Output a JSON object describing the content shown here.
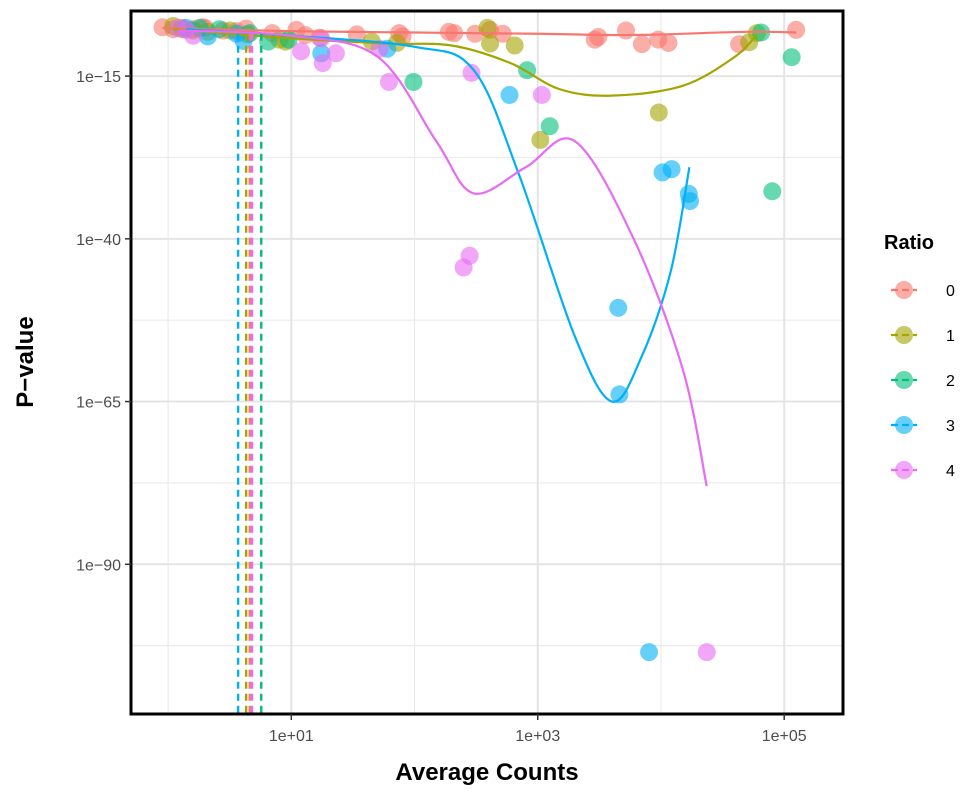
{
  "chart_data": {
    "type": "scatter",
    "xlabel": "Average Counts",
    "ylabel": "P−value",
    "x_scale": "log10",
    "y_scale": "log10",
    "xlim": [
      0.5,
      300000
    ],
    "ylim": [
      1e-113,
      1e-05
    ],
    "x_ticks": [
      {
        "value": 10,
        "label": "1e+01"
      },
      {
        "value": 1000,
        "label": "1e+03"
      },
      {
        "value": 100000,
        "label": "1e+05"
      }
    ],
    "y_ticks": [
      {
        "value": 1e-15,
        "label": "1e−15"
      },
      {
        "value": 1e-40,
        "label": "1e−40"
      },
      {
        "value": 1e-65,
        "label": "1e−65"
      },
      {
        "value": 1e-90,
        "label": "1e−90"
      }
    ],
    "grid": true,
    "legend": {
      "title": "Ratio",
      "position": "right"
    },
    "series": [
      {
        "name": "0",
        "color": "#F8766D",
        "points": [
          [
            0.9,
            -7.5
          ],
          [
            1.1,
            -7.8
          ],
          [
            1.3,
            -7.6
          ],
          [
            1.6,
            -7.8
          ],
          [
            1.9,
            -7.5
          ],
          [
            2.0,
            -7.6
          ],
          [
            2.8,
            -8.0
          ],
          [
            3.6,
            -8.1
          ],
          [
            4.3,
            -7.7
          ],
          [
            7.0,
            -8.4
          ],
          [
            11.0,
            -7.9
          ],
          [
            13.0,
            -8.7
          ],
          [
            17.0,
            -9.1
          ],
          [
            34.0,
            -8.6
          ],
          [
            75.0,
            -8.4
          ],
          [
            80.0,
            -8.9
          ],
          [
            190.0,
            -8.2
          ],
          [
            210.0,
            -8.4
          ],
          [
            310.0,
            -8.5
          ],
          [
            410.0,
            -7.9
          ],
          [
            520.0,
            -8.5
          ],
          [
            2900.0,
            -9.4
          ],
          [
            3100.0,
            -9.0
          ],
          [
            5200.0,
            -8.0
          ],
          [
            7000.0,
            -10.1
          ],
          [
            9500.0,
            -9.4
          ],
          [
            11500.0,
            -9.9
          ],
          [
            43000.0,
            -10.1
          ],
          [
            125000.0,
            -7.9
          ]
        ],
        "smooth": [
          [
            0.9,
            -7.6
          ],
          [
            10.0,
            -8.1
          ],
          [
            100.0,
            -8.3
          ],
          [
            1000.0,
            -8.5
          ],
          [
            4000.0,
            -8.7
          ],
          [
            10000.0,
            -8.6
          ],
          [
            50000.0,
            -8.2
          ],
          [
            125000.0,
            -8.3
          ]
        ],
        "cutoff_x": 4.6
      },
      {
        "name": "1",
        "color": "#A3A500",
        "points": [
          [
            1.1,
            -7.3
          ],
          [
            1.3,
            -7.8
          ],
          [
            1.6,
            -8.0
          ],
          [
            2.1,
            -8.2
          ],
          [
            3.2,
            -8.0
          ],
          [
            4.4,
            -8.6
          ],
          [
            8.0,
            -9.4
          ],
          [
            9.0,
            -9.7
          ],
          [
            45.0,
            -9.7
          ],
          [
            72.0,
            -9.9
          ],
          [
            390.0,
            -7.6
          ],
          [
            410.0,
            -10.0
          ],
          [
            650.0,
            -10.3
          ],
          [
            1050.0,
            -24.8
          ],
          [
            9600.0,
            -20.6
          ],
          [
            52000.0,
            -9.8
          ],
          [
            60000.0,
            -8.4
          ]
        ],
        "smooth": [
          [
            1.1,
            -7.8
          ],
          [
            10.0,
            -9.2
          ],
          [
            60.0,
            -10.0
          ],
          [
            200.0,
            -10.3
          ],
          [
            600.0,
            -13.0
          ],
          [
            1500.0,
            -17.0
          ],
          [
            4000.0,
            -18.0
          ],
          [
            15000.0,
            -16.5
          ],
          [
            40000.0,
            -12.0
          ],
          [
            60000.0,
            -8.6
          ]
        ],
        "cutoff_x": 4.3
      },
      {
        "name": "2",
        "color": "#00BF7D",
        "points": [
          [
            1.8,
            -7.6
          ],
          [
            2.6,
            -7.8
          ],
          [
            4.6,
            -8.4
          ],
          [
            6.5,
            -9.7
          ],
          [
            9.5,
            -9.4
          ],
          [
            98.0,
            -15.9
          ],
          [
            820.0,
            -14.1
          ],
          [
            1250.0,
            -22.7
          ],
          [
            65000.0,
            -8.3
          ],
          [
            80000.0,
            -32.7
          ],
          [
            115000.0,
            -12.1
          ]
        ],
        "cutoff_x": 5.7
      },
      {
        "name": "3",
        "color": "#00B0F6",
        "points": [
          [
            1.4,
            -7.6
          ],
          [
            2.1,
            -8.9
          ],
          [
            3.6,
            -8.5
          ],
          [
            4.1,
            -9.6
          ],
          [
            17.5,
            -11.5
          ],
          [
            60.0,
            -10.8
          ],
          [
            590.0,
            -17.9
          ],
          [
            4500.0,
            -50.6
          ],
          [
            4600.0,
            -63.9
          ],
          [
            8000.0,
            -103.5
          ],
          [
            10300.0,
            -29.8
          ],
          [
            12200.0,
            -29.3
          ],
          [
            16800.0,
            -33.1
          ],
          [
            17200.0,
            -34.2
          ]
        ],
        "smooth": [
          [
            1.4,
            -7.8
          ],
          [
            10.0,
            -8.8
          ],
          [
            100.0,
            -10.5
          ],
          [
            300.0,
            -14.0
          ],
          [
            700.0,
            -30.0
          ],
          [
            2000.0,
            -55.0
          ],
          [
            4000.0,
            -65.0
          ],
          [
            7000.0,
            -58.0
          ],
          [
            12000.0,
            -45.0
          ],
          [
            17000.0,
            -29.0
          ]
        ],
        "cutoff_x": 3.7
      },
      {
        "name": "4",
        "color": "#E76BF3",
        "points": [
          [
            1.2,
            -7.6
          ],
          [
            1.4,
            -7.9
          ],
          [
            1.6,
            -8.8
          ],
          [
            12.0,
            -11.2
          ],
          [
            17.5,
            -9.2
          ],
          [
            18.0,
            -13.0
          ],
          [
            23.0,
            -11.5
          ],
          [
            52.0,
            -10.8
          ],
          [
            62.0,
            -15.9
          ],
          [
            250.0,
            -44.4
          ],
          [
            280.0,
            -42.6
          ],
          [
            290.0,
            -14.5
          ],
          [
            1080.0,
            -17.9
          ],
          [
            23500.0,
            -103.5
          ]
        ],
        "smooth": [
          [
            1.2,
            -8.0
          ],
          [
            10.0,
            -8.8
          ],
          [
            50.0,
            -12.0
          ],
          [
            150.0,
            -25.0
          ],
          [
            300.0,
            -33.0
          ],
          [
            800.0,
            -29.0
          ],
          [
            2000.0,
            -25.0
          ],
          [
            6000.0,
            -40.0
          ],
          [
            15000.0,
            -60.0
          ],
          [
            23500.0,
            -78.0
          ]
        ],
        "cutoff_x": 4.8
      }
    ]
  }
}
